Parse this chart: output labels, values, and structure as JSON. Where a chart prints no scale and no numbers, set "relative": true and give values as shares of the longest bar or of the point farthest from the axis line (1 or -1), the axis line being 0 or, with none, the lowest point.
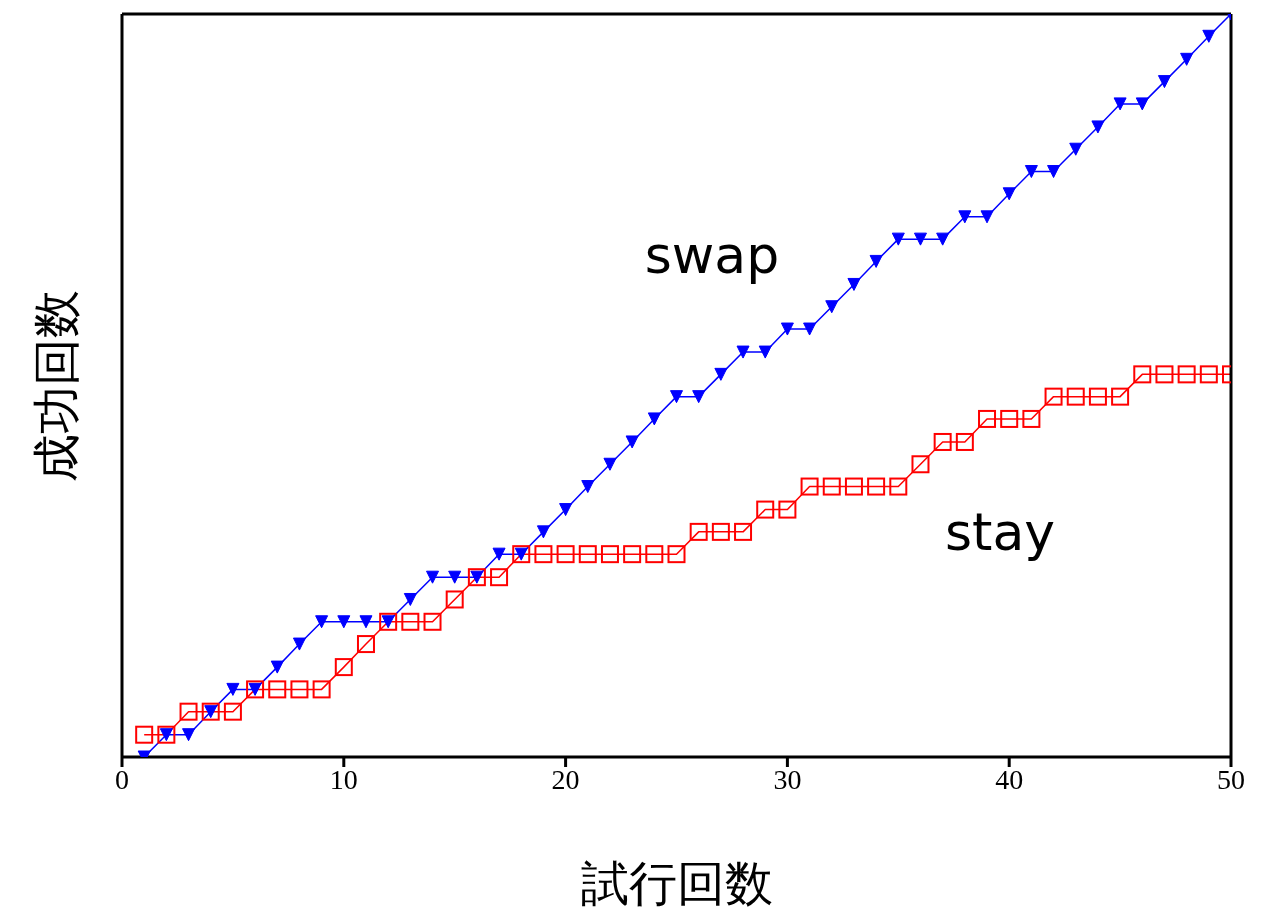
{
  "chart_data": {
    "type": "line",
    "relative": true,
    "xlabel": "試行回数",
    "ylabel": "成功回数",
    "x": [
      1,
      2,
      3,
      4,
      5,
      6,
      7,
      8,
      9,
      10,
      11,
      12,
      13,
      14,
      15,
      16,
      17,
      18,
      19,
      20,
      21,
      22,
      23,
      24,
      25,
      26,
      27,
      28,
      29,
      30,
      31,
      32,
      33,
      34,
      35,
      36,
      37,
      38,
      39,
      40,
      41,
      42,
      43,
      44,
      45,
      46,
      47,
      48,
      49,
      50
    ],
    "xlim": [
      0,
      50
    ],
    "xticks": [
      0,
      10,
      20,
      30,
      40,
      50
    ],
    "grid": false,
    "legend": false,
    "tick_labels": "x",
    "series": [
      {
        "name": "swap",
        "color": "#0000ff",
        "marker": "triangle",
        "values": [
          0,
          0.03,
          0.03,
          0.061,
          0.091,
          0.091,
          0.121,
          0.152,
          0.182,
          0.182,
          0.182,
          0.182,
          0.212,
          0.242,
          0.242,
          0.242,
          0.273,
          0.273,
          0.303,
          0.333,
          0.364,
          0.394,
          0.424,
          0.455,
          0.485,
          0.485,
          0.515,
          0.545,
          0.545,
          0.576,
          0.576,
          0.606,
          0.636,
          0.667,
          0.697,
          0.697,
          0.697,
          0.727,
          0.727,
          0.758,
          0.788,
          0.788,
          0.818,
          0.848,
          0.879,
          0.879,
          0.909,
          0.939,
          0.97,
          1
        ]
      },
      {
        "name": "stay",
        "color": "#ff0000",
        "marker": "square",
        "values": [
          0.03,
          0.03,
          0.061,
          0.061,
          0.061,
          0.091,
          0.091,
          0.091,
          0.091,
          0.121,
          0.152,
          0.182,
          0.182,
          0.182,
          0.212,
          0.242,
          0.242,
          0.273,
          0.273,
          0.273,
          0.273,
          0.273,
          0.273,
          0.273,
          0.273,
          0.303,
          0.303,
          0.303,
          0.333,
          0.333,
          0.364,
          0.364,
          0.364,
          0.364,
          0.364,
          0.394,
          0.424,
          0.424,
          0.455,
          0.455,
          0.455,
          0.485,
          0.485,
          0.485,
          0.485,
          0.515,
          0.515,
          0.515,
          0.515,
          0.515
        ]
      }
    ]
  }
}
